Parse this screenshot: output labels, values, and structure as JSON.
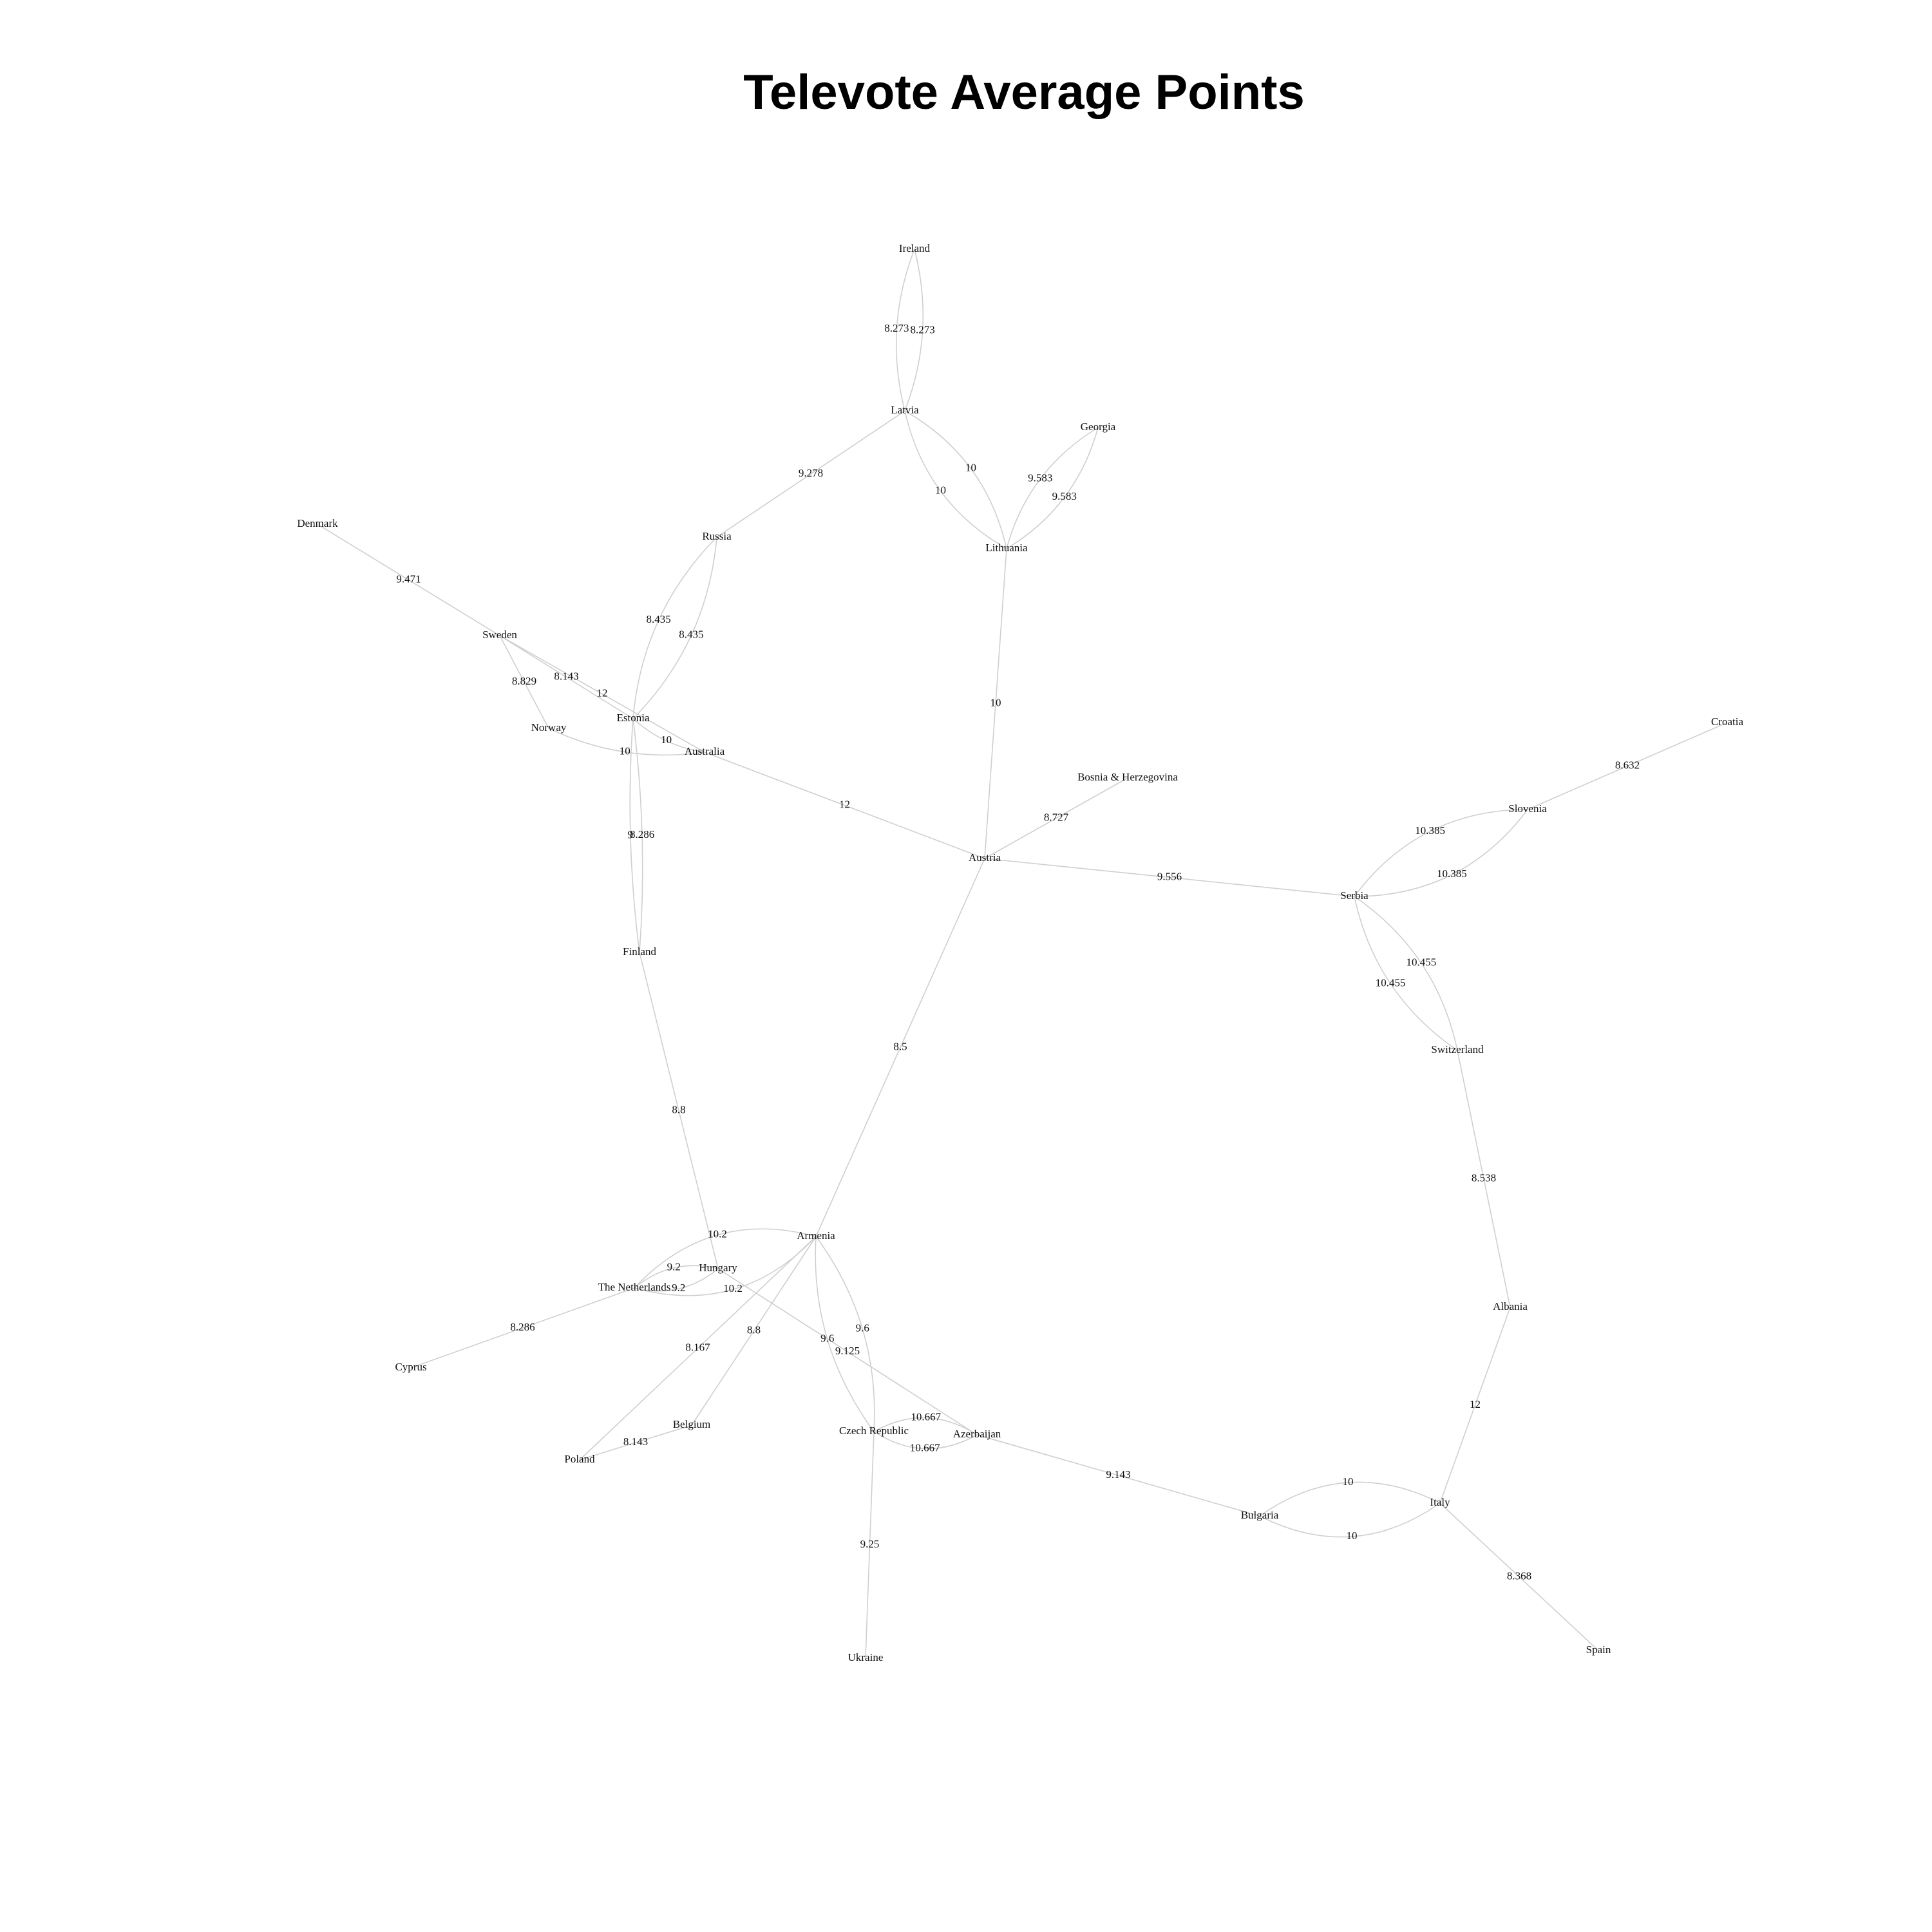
{
  "title": "Televote Average Points",
  "nodes": [
    "Ireland",
    "Latvia",
    "Georgia",
    "Lithuania",
    "Russia",
    "Denmark",
    "Sweden",
    "Norway",
    "Estonia",
    "Australia",
    "Austria",
    "Bosnia & Herzegovina",
    "Croatia",
    "Slovenia",
    "Serbia",
    "Switzerland",
    "Finland",
    "Armenia",
    "Hungary",
    "The Netherlands",
    "Cyprus",
    "Belgium",
    "Poland",
    "Czech Republic",
    "Azerbaijan",
    "Ukraine",
    "Bulgaria",
    "Italy",
    "Albania",
    "Spain"
  ],
  "edges": [
    {
      "from": "Ireland",
      "to": "Latvia",
      "label": "8.273"
    },
    {
      "from": "Latvia",
      "to": "Ireland",
      "label": "8.273"
    },
    {
      "from": "Latvia",
      "to": "Lithuania",
      "label": "10"
    },
    {
      "from": "Lithuania",
      "to": "Latvia",
      "label": "10"
    },
    {
      "from": "Georgia",
      "to": "Lithuania",
      "label": "9.583"
    },
    {
      "from": "Lithuania",
      "to": "Georgia",
      "label": "9.583"
    },
    {
      "from": "Russia",
      "to": "Latvia",
      "label": "9.278"
    },
    {
      "from": "Lithuania",
      "to": "Austria",
      "label": "10"
    },
    {
      "from": "Russia",
      "to": "Estonia",
      "label": "8.435"
    },
    {
      "from": "Estonia",
      "to": "Russia",
      "label": "8.435"
    },
    {
      "from": "Denmark",
      "to": "Sweden",
      "label": "9.471"
    },
    {
      "from": "Sweden",
      "to": "Norway",
      "label": "8.829"
    },
    {
      "from": "Sweden",
      "to": "Australia",
      "label": "12"
    },
    {
      "from": "Sweden",
      "to": "Estonia",
      "label": "8.143"
    },
    {
      "from": "Estonia",
      "to": "Australia",
      "label": "10"
    },
    {
      "from": "Norway",
      "to": "Australia",
      "label": "10"
    },
    {
      "from": "Estonia",
      "to": "Finland",
      "label": "8.286"
    },
    {
      "from": "Finland",
      "to": "Estonia",
      "label": "9"
    },
    {
      "from": "Australia",
      "to": "Austria",
      "label": "12"
    },
    {
      "from": "Bosnia & Herzegovina",
      "to": "Austria",
      "label": "8.727"
    },
    {
      "from": "Austria",
      "to": "Serbia",
      "label": "9.556"
    },
    {
      "from": "Croatia",
      "to": "Slovenia",
      "label": "8.632"
    },
    {
      "from": "Slovenia",
      "to": "Serbia",
      "label": "10.385"
    },
    {
      "from": "Serbia",
      "to": "Slovenia",
      "label": "10.385"
    },
    {
      "from": "Serbia",
      "to": "Switzerland",
      "label": "10.455"
    },
    {
      "from": "Switzerland",
      "to": "Serbia",
      "label": "10.455"
    },
    {
      "from": "Switzerland",
      "to": "Albania",
      "label": "8.538"
    },
    {
      "from": "Austria",
      "to": "Armenia",
      "label": "8.5"
    },
    {
      "from": "Finland",
      "to": "Hungary",
      "label": "8.8"
    },
    {
      "from": "Armenia",
      "to": "The Netherlands",
      "label": "10.2"
    },
    {
      "from": "The Netherlands",
      "to": "Armenia",
      "label": "10.2"
    },
    {
      "from": "Hungary",
      "to": "The Netherlands",
      "label": "9.2"
    },
    {
      "from": "The Netherlands",
      "to": "Hungary",
      "label": "9.2"
    },
    {
      "from": "Cyprus",
      "to": "The Netherlands",
      "label": "8.286"
    },
    {
      "from": "Armenia",
      "to": "Czech Republic",
      "label": "9.6"
    },
    {
      "from": "Czech Republic",
      "to": "Armenia",
      "label": "9.6"
    },
    {
      "from": "Hungary",
      "to": "Azerbaijan",
      "label": "9.125"
    },
    {
      "from": "Armenia",
      "to": "Belgium",
      "label": "8.8"
    },
    {
      "from": "Armenia",
      "to": "Poland",
      "label": "8.167"
    },
    {
      "from": "Poland",
      "to": "Belgium",
      "label": "8.143"
    },
    {
      "from": "Czech Republic",
      "to": "Azerbaijan",
      "label": "10.667"
    },
    {
      "from": "Azerbaijan",
      "to": "Czech Republic",
      "label": "10.667"
    },
    {
      "from": "Ukraine",
      "to": "Czech Republic",
      "label": "9.25"
    },
    {
      "from": "Azerbaijan",
      "to": "Bulgaria",
      "label": "9.143"
    },
    {
      "from": "Bulgaria",
      "to": "Italy",
      "label": "10"
    },
    {
      "from": "Italy",
      "to": "Bulgaria",
      "label": "10"
    },
    {
      "from": "Albania",
      "to": "Italy",
      "label": "12"
    },
    {
      "from": "Spain",
      "to": "Italy",
      "label": "8.368"
    }
  ]
}
